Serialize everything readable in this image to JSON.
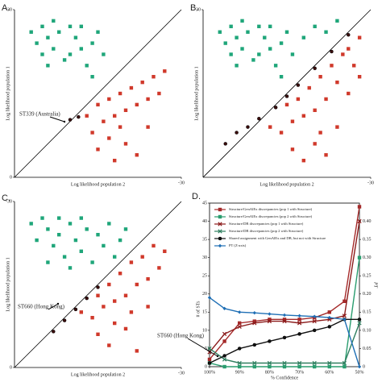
{
  "chart_data": [
    {
      "type": "scatter",
      "label": "A.",
      "xlabel": "Log likelihood population 2",
      "ylabel": "Log likelihood population 1",
      "xlim": [
        0,
        -30
      ],
      "ylim": [
        0,
        -30
      ],
      "xticks": [
        -30
      ],
      "yticks": [
        0,
        -30
      ],
      "diagonal": true,
      "annotation": "ST339 (Australia)",
      "series": [
        {
          "color": "#1fa67a",
          "marker": "square",
          "x": [
            -3,
            -4,
            -5,
            -5,
            -6,
            -7,
            -7,
            -8,
            -9,
            -10,
            -10,
            -11,
            -12,
            -12,
            -13,
            -14,
            -14,
            -15,
            -16,
            -6
          ],
          "values": [
            -26,
            -24,
            -27,
            -22,
            -25,
            -28,
            -23,
            -26,
            -21,
            -27,
            -22,
            -25,
            -23,
            -27,
            -20,
            -24,
            -18,
            -26,
            -22,
            -20
          ]
        },
        {
          "color": "#d0392b",
          "marker": "square",
          "x": [
            -13,
            -14,
            -15,
            -15,
            -16,
            -17,
            -17,
            -18,
            -18,
            -19,
            -20,
            -20,
            -21,
            -22,
            -22,
            -23,
            -24,
            -24,
            -25,
            -26,
            -27,
            -19
          ],
          "values": [
            -11,
            -8,
            -13,
            -5,
            -10,
            -14,
            -7,
            -11,
            -3,
            -15,
            -12,
            -6,
            -16,
            -13,
            -4,
            -17,
            -9,
            -14,
            -18,
            -15,
            -19,
            -9
          ]
        },
        {
          "color": "#3a0c0c",
          "marker": "circle",
          "x": [
            -10,
            -11.5
          ],
          "values": [
            -10.3,
            -10.8
          ]
        }
      ]
    },
    {
      "type": "scatter",
      "label": "B.",
      "xlabel": "Log likelihood population 2",
      "ylabel": "Log likelihood population 1",
      "xlim": [
        0,
        -30
      ],
      "ylim": [
        0,
        -30
      ],
      "xticks": [
        -30
      ],
      "yticks": [
        -30
      ],
      "diagonal": true,
      "series": [
        {
          "color": "#1fa67a",
          "marker": "square",
          "x": [
            -3,
            -4,
            -5,
            -5,
            -6,
            -7,
            -7,
            -8,
            -9,
            -10,
            -10,
            -11,
            -12,
            -12,
            -13,
            -14,
            -14,
            -15,
            -16,
            -6,
            -18,
            -20,
            -22,
            -24
          ],
          "values": [
            -26,
            -24,
            -27,
            -22,
            -25,
            -28,
            -23,
            -26,
            -21,
            -27,
            -22,
            -25,
            -23,
            -27,
            -20,
            -24,
            -18,
            -26,
            -22,
            -20,
            -25,
            -27,
            -26,
            -28
          ]
        },
        {
          "color": "#d0392b",
          "marker": "square",
          "x": [
            -12,
            -14,
            -15,
            -16,
            -17,
            -18,
            -18,
            -19,
            -20,
            -20,
            -21,
            -22,
            -22,
            -23,
            -24,
            -24,
            -25,
            -26,
            -26,
            -27,
            -28,
            -28,
            -16,
            -21
          ],
          "values": [
            -9,
            -8,
            -13,
            -5,
            -14,
            -11,
            -3,
            -16,
            -12,
            -6,
            -18,
            -14,
            -4,
            -20,
            -9,
            -17,
            -22,
            -15,
            -23,
            -20,
            -25,
            -18,
            -10,
            -8
          ]
        },
        {
          "color": "#3a0c0c",
          "marker": "circle",
          "x": [
            -4,
            -6,
            -8,
            -10,
            -13,
            -15,
            -17,
            -20,
            -23,
            -26
          ],
          "values": [
            -6,
            -8,
            -9,
            -10.5,
            -12.5,
            -14.5,
            -16.5,
            -19.5,
            -22.5,
            -25.5
          ]
        }
      ]
    },
    {
      "type": "scatter",
      "label": "C.",
      "xlabel": "Log likelihood population 2",
      "ylabel": "Log likelihood population 1",
      "xlim": [
        0,
        -30
      ],
      "ylim": [
        0,
        -30
      ],
      "xticks": [
        -30
      ],
      "yticks": [
        0,
        -30
      ],
      "diagonal": true,
      "annotation": "ST660 (Hong Kong)",
      "series": [
        {
          "color": "#1fa67a",
          "marker": "square",
          "x": [
            -3,
            -4,
            -5,
            -6,
            -7,
            -8,
            -8,
            -9,
            -10,
            -11,
            -12,
            -12,
            -13,
            -14,
            -15,
            -16,
            -17,
            -18,
            -19,
            -20,
            -6,
            -10
          ],
          "values": [
            -26,
            -23,
            -27,
            -25,
            -22,
            -27,
            -24,
            -20,
            -26,
            -23,
            -27,
            -21,
            -25,
            -19,
            -24,
            -22,
            -26,
            -20,
            -23,
            -25,
            -19,
            -18
          ]
        },
        {
          "color": "#d0392b",
          "marker": "square",
          "x": [
            -12,
            -14,
            -15,
            -15,
            -16,
            -17,
            -17,
            -18,
            -19,
            -20,
            -20,
            -21,
            -22,
            -22,
            -23,
            -24,
            -24,
            -25,
            -26,
            -27,
            -18,
            -21
          ],
          "values": [
            -10,
            -9,
            -13,
            -6,
            -11,
            -15,
            -4,
            -12,
            -17,
            -13,
            -7,
            -19,
            -15,
            -3,
            -20,
            -11,
            -16,
            -22,
            -18,
            -21,
            -8,
            -10
          ]
        },
        {
          "color": "#3a0c0c",
          "marker": "circle",
          "x": [
            -7,
            -9,
            -11,
            -13,
            -15
          ],
          "values": [
            -6.5,
            -8.5,
            -10.5,
            -12.5,
            -14.5
          ]
        }
      ]
    },
    {
      "type": "line",
      "label": "D.",
      "xlabel": "% Confidence",
      "ylabel": "# of STs",
      "y2label": "PT",
      "annotation": "ST660 (Hong Kong)",
      "legend": "upper left",
      "x": [
        100,
        95,
        90,
        85,
        80,
        75,
        70,
        65,
        60,
        55,
        50
      ],
      "xlim": [
        100,
        50
      ],
      "xticks": [
        {
          "value": 100,
          "label": "100%"
        },
        {
          "value": 90,
          "label": "90%"
        },
        {
          "value": 80,
          "label": "80%"
        },
        {
          "value": 70,
          "label": "70%"
        },
        {
          "value": 60,
          "label": "60%"
        },
        {
          "value": 50,
          "label": "50%"
        }
      ],
      "ylim": [
        0,
        45
      ],
      "yticks": [
        0,
        5,
        10,
        15,
        20,
        25,
        30,
        35,
        40,
        45
      ],
      "y2lim": [
        0,
        0.45
      ],
      "y2ticks": [
        0,
        0.05,
        {
          "value": 0.1,
          "label": "0.10"
        },
        0.15,
        {
          "value": 0.2,
          "label": "0.20"
        },
        0.25,
        {
          "value": 0.3,
          "label": "0.30"
        },
        0.35,
        {
          "value": 0.4,
          "label": "0.40"
        }
      ],
      "series": [
        {
          "name": "Structure/GenAlEx discrepancies (pop 1 with Structure)",
          "color": "#a52a2a",
          "marker": "square",
          "values": [
            2,
            7,
            12,
            12.5,
            13,
            13,
            13,
            13.5,
            15,
            18,
            44
          ]
        },
        {
          "name": "Structure/GenAlEx discrepancies (pop 2 with Structure)",
          "color": "#2a9d6f",
          "marker": "square",
          "values": [
            1,
            0,
            0,
            0,
            0,
            0,
            0,
            0,
            0,
            0,
            30
          ]
        },
        {
          "name": "Structure/DB discrepancies (pop 1 with Structure)",
          "color": "#8b1a1a",
          "marker": "x",
          "values": [
            4,
            9,
            11,
            12,
            12.5,
            12.5,
            12,
            12.5,
            13,
            14,
            40
          ]
        },
        {
          "name": "Structure/DB discrepancies (pop 2 with Structure)",
          "color": "#2f7f5f",
          "marker": "x",
          "values": [
            5,
            2,
            1,
            1,
            1,
            1,
            1,
            1,
            1,
            1,
            12
          ]
        },
        {
          "name": "Shared assignment with GenAlEx and DB, but not with Structure",
          "color": "#111111",
          "marker": "circle",
          "values": [
            1,
            3,
            5,
            6,
            7,
            8,
            9,
            10,
            11,
            13,
            13
          ]
        },
        {
          "name": "PT (Z-axis)",
          "color": "#1f6fb5",
          "marker": "diamond",
          "axis": "y2",
          "values": [
            0.19,
            0.16,
            0.15,
            0.148,
            0.145,
            0.142,
            0.14,
            0.138,
            0.135,
            0.13,
            0
          ]
        }
      ]
    }
  ]
}
